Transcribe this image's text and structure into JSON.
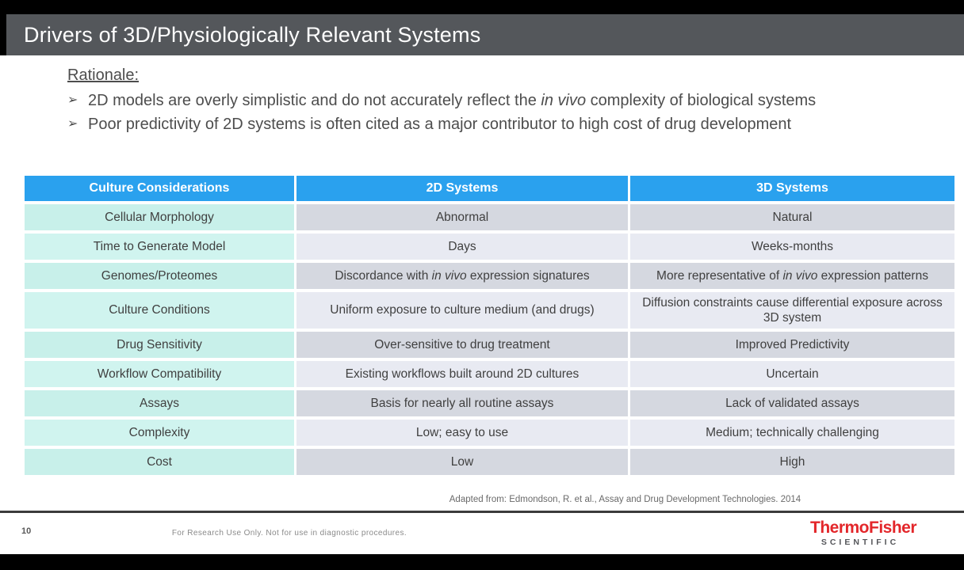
{
  "slide": {
    "title": "Drivers of 3D/Physiologically Relevant Systems",
    "page_number": "10",
    "rationale": {
      "heading": "Rationale:",
      "bullets": [
        {
          "pre": "2D models are overly simplistic and do not accurately reflect the ",
          "it": "in vivo",
          "post": " complexity of biological systems"
        },
        {
          "pre": "Poor predictivity of 2D systems is often cited as a major contributor to high cost of drug development",
          "it": "",
          "post": ""
        }
      ]
    },
    "table": {
      "headers": [
        "Culture Considerations",
        "2D Systems",
        "3D Systems"
      ],
      "rows": [
        {
          "label": "Cellular Morphology",
          "c2": {
            "pre": "Abnormal",
            "it": "",
            "post": ""
          },
          "c3": {
            "pre": "Natural",
            "it": "",
            "post": ""
          }
        },
        {
          "label": "Time to Generate Model",
          "c2": {
            "pre": "Days",
            "it": "",
            "post": ""
          },
          "c3": {
            "pre": "Weeks-months",
            "it": "",
            "post": ""
          }
        },
        {
          "label": "Genomes/Proteomes",
          "c2": {
            "pre": "Discordance with ",
            "it": "in vivo",
            "post": " expression signatures"
          },
          "c3": {
            "pre": "More representative of ",
            "it": "in vivo",
            "post": " expression patterns"
          }
        },
        {
          "label": "Culture Conditions",
          "c2": {
            "pre": "Uniform exposure to culture medium (and drugs)",
            "it": "",
            "post": ""
          },
          "c3": {
            "pre": "Diffusion constraints cause differential exposure across 3D system",
            "it": "",
            "post": ""
          }
        },
        {
          "label": "Drug Sensitivity",
          "c2": {
            "pre": "Over-sensitive to drug treatment",
            "it": "",
            "post": ""
          },
          "c3": {
            "pre": "Improved Predictivity",
            "it": "",
            "post": ""
          }
        },
        {
          "label": "Workflow Compatibility",
          "c2": {
            "pre": "Existing workflows built around 2D cultures",
            "it": "",
            "post": ""
          },
          "c3": {
            "pre": "Uncertain",
            "it": "",
            "post": ""
          }
        },
        {
          "label": "Assays",
          "c2": {
            "pre": "Basis for nearly all routine assays",
            "it": "",
            "post": ""
          },
          "c3": {
            "pre": "Lack of validated assays",
            "it": "",
            "post": ""
          }
        },
        {
          "label": "Complexity",
          "c2": {
            "pre": "Low; easy to use",
            "it": "",
            "post": ""
          },
          "c3": {
            "pre": "Medium; technically challenging",
            "it": "",
            "post": ""
          }
        },
        {
          "label": "Cost",
          "c2": {
            "pre": "Low",
            "it": "",
            "post": ""
          },
          "c3": {
            "pre": "High",
            "it": "",
            "post": ""
          }
        }
      ]
    },
    "citation": "Adapted from: Edmondson, R. et al., Assay and Drug Development Technologies. 2014",
    "footer": {
      "disclaimer": "For Research Use Only. Not for use in diagnostic procedures.",
      "logo_brand": "ThermoFisher",
      "logo_sub": "SCIENTIFIC"
    },
    "colors": {
      "header_blue": "#2AA1EE",
      "consideration_mint": "#C8F0EA",
      "row_gray_dark": "#D5D8E0",
      "row_gray_light": "#E8EAF2",
      "title_bar_gray": "#54575B",
      "brand_red": "#E3262A"
    },
    "bullet_marker": "➢"
  }
}
